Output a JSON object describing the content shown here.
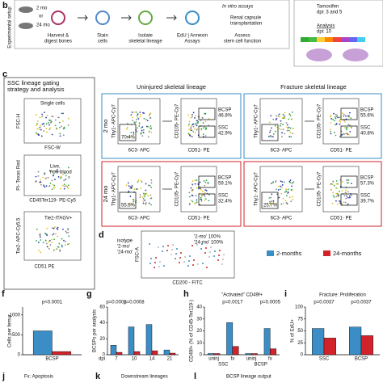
{
  "panel_b": {
    "label": "b",
    "side_label": "Experimental setup",
    "ages": [
      "2 mo",
      "or",
      "24 mo"
    ],
    "steps": [
      [
        "Harvest &",
        "digest bones"
      ],
      [
        "Stain",
        "cells"
      ],
      [
        "Isolate",
        "skeletal lineage"
      ],
      [
        "EdU | Annexin",
        "Assays"
      ],
      [
        "Assess",
        "stem cell function"
      ]
    ],
    "in_vitro": "In vitro assays",
    "renal": [
      "Renal capsule",
      "transplantation"
    ],
    "tamoxifen": [
      "Tamoxifen",
      "dpi: 3 and 5"
    ],
    "analysis": [
      "Analysis",
      "dpi: 10"
    ]
  },
  "panel_c": {
    "label": "c",
    "gating_title": [
      "SSC lineage gating",
      "strategy and analysis"
    ],
    "gating": {
      "single": "Single cells",
      "fsc_h": "FSC-H",
      "fsc_w": "FSC-W",
      "pi": "PI- Texas Red",
      "live": [
        "Live,",
        "non-blood"
      ],
      "cd45": "CD45Ter119- PE-Cy5",
      "tie2_axis": "Tie2- APC-Cy5.5",
      "tie2_gate": "Tie2-ITAGV+",
      "cd51": "CD51 PE"
    },
    "headers": [
      "Uninjured skeletal lineage",
      "Fracture skeletal lineage"
    ],
    "axes": {
      "thy1": "Thy1- APC-Cy7",
      "c6c3": "6C3- APC",
      "cd105": "CD105- PE-Cy7",
      "cd51": "CD51- PE"
    },
    "rows": [
      {
        "age": "2 mo",
        "uninjured": {
          "gate": "70.4%",
          "bcsp": [
            "BCSP",
            "46.8%"
          ],
          "ssc": [
            "SSC",
            "42.9%"
          ]
        },
        "fracture": {
          "bcsp": [
            "BCSP",
            "55.6%"
          ],
          "ssc": [
            "SSC",
            "40.8%"
          ]
        }
      },
      {
        "age": "24 mo",
        "uninjured": {
          "gate": "55.8%",
          "bcsp": [
            "BCSP",
            "59.1%"
          ],
          "ssc": [
            "SSC",
            "32.4%"
          ]
        },
        "fracture": {
          "gate": "25.7%",
          "bcsp": [
            "BCSP",
            "57.3%"
          ],
          "ssc": [
            "SSC",
            "39.7%"
          ]
        }
      }
    ]
  },
  "panel_d": {
    "label": "d",
    "y_label": "FSC-A",
    "x_label": "CD200 - FITC",
    "legend": [
      "isotype",
      "'2-mo'",
      "'24-mo'"
    ],
    "stats": [
      "'2-mo' 100%",
      "'24-mo' 100%"
    ]
  },
  "figure_legend": [
    {
      "name": "2-months",
      "color": "#3a8dc5"
    },
    {
      "name": "24-months",
      "color": "#d2232a"
    }
  ],
  "charts": [
    {
      "label": "f",
      "type": "bar",
      "y_label": "Cells per femur",
      "categories": [
        "BCSP"
      ],
      "series": [
        {
          "color": "#3a8dc5",
          "values": [
            600
          ]
        },
        {
          "color": "#d2232a",
          "values": [
            80
          ]
        }
      ],
      "ylim": [
        0,
        1200
      ],
      "yticks": [
        0,
        500,
        1000
      ],
      "p_values": [
        "p<0.0001"
      ]
    },
    {
      "label": "g",
      "type": "bar",
      "y_label": "BCSPs per analysis",
      "x_label": "dpi",
      "categories": [
        "7",
        "10",
        "14",
        "21"
      ],
      "series": [
        {
          "color": "#3a8dc5",
          "values": [
            12,
            35,
            38,
            6
          ]
        },
        {
          "color": "#d2232a",
          "values": [
            3,
            4,
            5,
            2
          ]
        }
      ],
      "ylim": [
        0,
        60
      ],
      "yticks": [
        0,
        20,
        40,
        60
      ],
      "p_values": [
        "p=0.0001",
        "p=0.0008"
      ]
    },
    {
      "label": "h",
      "type": "bar",
      "title": "\"Activated\" CD49f+",
      "y_label": "CD49f+ (% of CD45-Ter119-)",
      "categories": [
        "uninj",
        "fx",
        "uninj",
        "fx"
      ],
      "groups": [
        "SSC",
        "BCSP"
      ],
      "series": [
        {
          "color": "#3a8dc5",
          "values": [
            1,
            27,
            1,
            22
          ]
        },
        {
          "color": "#d2232a",
          "values": [
            1,
            7,
            1,
            5
          ]
        }
      ],
      "ylim": [
        0,
        40
      ],
      "yticks": [
        0,
        10,
        20,
        30,
        40
      ],
      "p_values": [
        "p=0.0017",
        "p=0.0005"
      ]
    },
    {
      "label": "i",
      "type": "bar",
      "title": "Fracture: Proliferation",
      "y_label": "% of EdU+",
      "categories": [
        "SSC",
        "BCSP"
      ],
      "series": [
        {
          "color": "#3a8dc5",
          "values": [
            55,
            58
          ]
        },
        {
          "color": "#d2232a",
          "values": [
            35,
            40
          ]
        }
      ],
      "ylim": [
        0,
        100
      ],
      "yticks": [
        0,
        25,
        50,
        75,
        100
      ],
      "p_values": [
        "p=0.0037",
        "p=0.0037"
      ]
    }
  ],
  "bottom_panels": [
    {
      "label": "j",
      "title": "Fx: Apoptosis"
    },
    {
      "label": "k",
      "title": "Downstream lineages"
    },
    {
      "label": "l",
      "title": "BCSP lineage output"
    }
  ]
}
